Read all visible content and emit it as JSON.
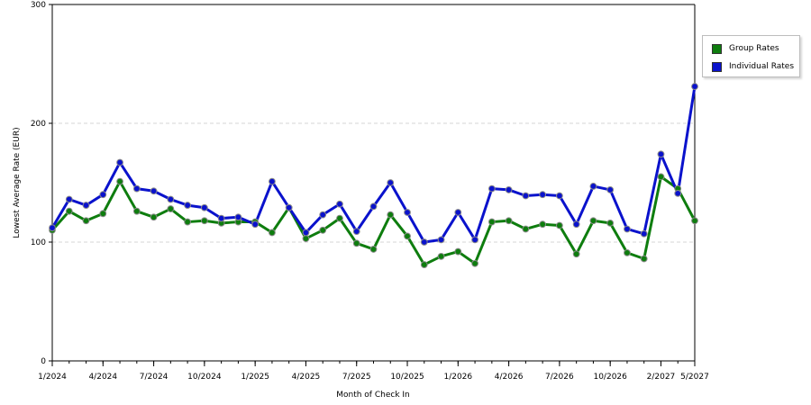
{
  "chart_data": {
    "type": "line",
    "xlabel": "Month of Check In",
    "ylabel": "Lowest Average Rate (EUR)",
    "ylim": [
      0,
      300
    ],
    "yticks": [
      0,
      100,
      200,
      300
    ],
    "grid": "horizontal dashed",
    "legend_position": "right",
    "x_tick_labels": [
      "1/2024",
      "4/2024",
      "7/2024",
      "10/2024",
      "1/2025",
      "4/2025",
      "7/2025",
      "10/2025",
      "1/2026",
      "4/2026",
      "7/2026",
      "10/2026",
      "2/2027",
      "5/2027"
    ],
    "x_tick_indices": [
      0,
      3,
      6,
      9,
      12,
      15,
      18,
      21,
      24,
      27,
      30,
      33,
      36,
      38
    ],
    "x": [
      "1/2024",
      "2/2024",
      "3/2024",
      "4/2024",
      "5/2024",
      "6/2024",
      "7/2024",
      "8/2024",
      "9/2024",
      "10/2024",
      "11/2024",
      "12/2024",
      "1/2025",
      "2/2025",
      "3/2025",
      "4/2025",
      "5/2025",
      "6/2025",
      "7/2025",
      "8/2025",
      "9/2025",
      "10/2025",
      "11/2025",
      "12/2025",
      "1/2026",
      "2/2026",
      "3/2026",
      "4/2026",
      "5/2026",
      "6/2026",
      "7/2026",
      "8/2026",
      "9/2026",
      "10/2026",
      "11/2026",
      "12/2026",
      "2/2027",
      "4/2027",
      "5/2027"
    ],
    "series": [
      {
        "name": "Group Rates",
        "color": "#0e7d0e",
        "values": [
          110,
          126,
          118,
          124,
          151,
          126,
          121,
          128,
          117,
          118,
          116,
          117,
          117,
          108,
          129,
          103,
          110,
          120,
          99,
          94,
          123,
          105,
          81,
          88,
          92,
          82,
          117,
          118,
          111,
          115,
          114,
          90,
          118,
          116,
          91,
          86,
          155,
          145,
          118
        ]
      },
      {
        "name": "Individual Rates",
        "color": "#0a12cc",
        "values": [
          112,
          136,
          131,
          140,
          167,
          145,
          143,
          136,
          131,
          129,
          120,
          121,
          115,
          151,
          129,
          108,
          123,
          132,
          109,
          130,
          150,
          125,
          100,
          102,
          125,
          102,
          145,
          144,
          139,
          140,
          139,
          115,
          147,
          144,
          111,
          107,
          174,
          141,
          231
        ]
      }
    ]
  }
}
